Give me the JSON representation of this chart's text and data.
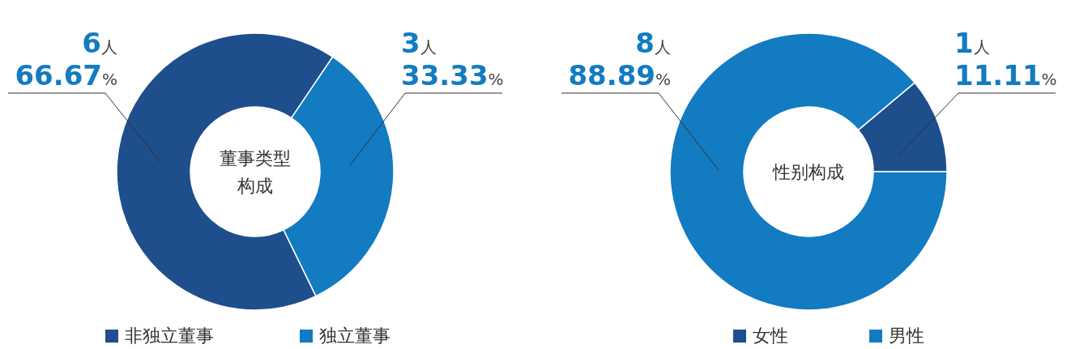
{
  "chart_data": [
    {
      "type": "donut",
      "title": "董事类型构成",
      "categories": [
        "非独立董事",
        "独立董事"
      ],
      "values": [
        6,
        3
      ],
      "colors": [
        "#1f4e8c",
        "#127bc1"
      ],
      "value_labels": [
        "6人\n66.67%",
        "3人\n33.33%"
      ],
      "legend": "bottom"
    },
    {
      "type": "donut",
      "title": "性别构成",
      "categories": [
        "女性",
        "男性"
      ],
      "values": [
        1,
        8
      ],
      "colors": [
        "#1f4e8c",
        "#127bc1"
      ],
      "value_labels": [
        "1人\n11.11%",
        "8人\n88.89%"
      ],
      "legend": "bottom"
    }
  ]
}
